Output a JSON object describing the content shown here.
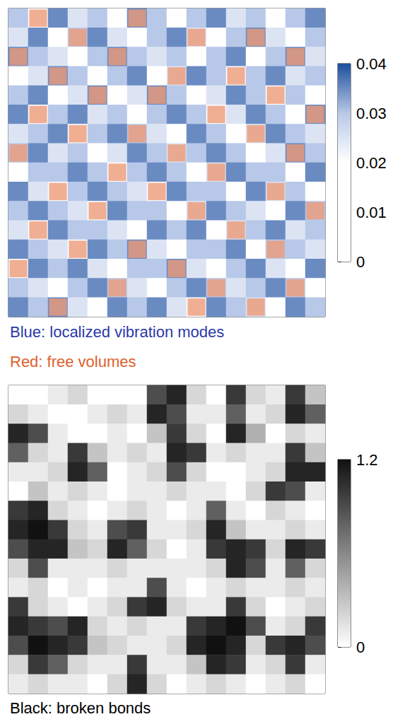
{
  "chart_data": [
    {
      "type": "heatmap",
      "cells": [
        [
          0.03,
          0.02,
          0.035,
          0.025,
          0.03,
          0.02,
          0.035,
          0.03,
          0.02,
          0.03,
          0.035,
          0.025,
          0.03,
          0.02,
          0.03,
          0.035
        ],
        [
          0.025,
          0.035,
          0.02,
          0.03,
          0.035,
          0.025,
          0.02,
          0.03,
          0.035,
          0.025,
          0.02,
          0.03,
          0.035,
          0.025,
          0.02,
          0.03
        ],
        [
          0.035,
          0.03,
          0.025,
          0.02,
          0.03,
          0.035,
          0.03,
          0.025,
          0.03,
          0.02,
          0.03,
          0.035,
          0.02,
          0.03,
          0.035,
          0.025
        ],
        [
          0.02,
          0.025,
          0.035,
          0.03,
          0.02,
          0.03,
          0.035,
          0.02,
          0.025,
          0.035,
          0.03,
          0.02,
          0.03,
          0.035,
          0.025,
          0.03
        ],
        [
          0.03,
          0.035,
          0.02,
          0.025,
          0.035,
          0.02,
          0.025,
          0.035,
          0.03,
          0.02,
          0.025,
          0.035,
          0.03,
          0.02,
          0.03,
          0.02
        ],
        [
          0.035,
          0.02,
          0.03,
          0.035,
          0.025,
          0.03,
          0.02,
          0.03,
          0.035,
          0.03,
          0.02,
          0.025,
          0.035,
          0.03,
          0.02,
          0.035
        ],
        [
          0.025,
          0.03,
          0.035,
          0.02,
          0.03,
          0.035,
          0.03,
          0.025,
          0.02,
          0.035,
          0.03,
          0.02,
          0.025,
          0.035,
          0.03,
          0.025
        ],
        [
          0.03,
          0.035,
          0.025,
          0.03,
          0.02,
          0.025,
          0.035,
          0.03,
          0.025,
          0.03,
          0.035,
          0.03,
          0.02,
          0.025,
          0.035,
          0.03
        ],
        [
          0.02,
          0.03,
          0.03,
          0.035,
          0.03,
          0.02,
          0.03,
          0.035,
          0.03,
          0.02,
          0.025,
          0.035,
          0.03,
          0.03,
          0.02,
          0.035
        ],
        [
          0.035,
          0.025,
          0.02,
          0.03,
          0.035,
          0.03,
          0.025,
          0.02,
          0.035,
          0.03,
          0.03,
          0.02,
          0.035,
          0.025,
          0.03,
          0.02
        ],
        [
          0.03,
          0.035,
          0.03,
          0.025,
          0.02,
          0.035,
          0.03,
          0.03,
          0.02,
          0.025,
          0.035,
          0.03,
          0.025,
          0.02,
          0.035,
          0.03
        ],
        [
          0.025,
          0.02,
          0.035,
          0.03,
          0.03,
          0.025,
          0.02,
          0.035,
          0.03,
          0.035,
          0.02,
          0.025,
          0.03,
          0.035,
          0.025,
          0.03
        ],
        [
          0.035,
          0.03,
          0.025,
          0.02,
          0.035,
          0.03,
          0.035,
          0.025,
          0.02,
          0.03,
          0.03,
          0.035,
          0.02,
          0.03,
          0.03,
          0.025
        ],
        [
          0.02,
          0.035,
          0.03,
          0.035,
          0.025,
          0.02,
          0.03,
          0.03,
          0.035,
          0.025,
          0.02,
          0.03,
          0.035,
          0.025,
          0.02,
          0.035
        ],
        [
          0.03,
          0.025,
          0.02,
          0.03,
          0.035,
          0.03,
          0.025,
          0.02,
          0.03,
          0.035,
          0.03,
          0.025,
          0.03,
          0.035,
          0.03,
          0.02
        ],
        [
          0.035,
          0.03,
          0.035,
          0.025,
          0.02,
          0.035,
          0.03,
          0.035,
          0.025,
          0.02,
          0.035,
          0.03,
          0.025,
          0.02,
          0.035,
          0.03
        ]
      ],
      "overlay": {
        "color": "#ec9a78",
        "cells": [
          [
            1,
            0
          ],
          [
            6,
            0
          ],
          [
            12,
            1
          ],
          [
            3,
            1
          ],
          [
            9,
            1
          ],
          [
            0,
            2
          ],
          [
            5,
            2
          ],
          [
            14,
            2
          ],
          [
            2,
            3
          ],
          [
            8,
            3
          ],
          [
            11,
            3
          ],
          [
            4,
            4
          ],
          [
            13,
            4
          ],
          [
            7,
            4
          ],
          [
            1,
            5
          ],
          [
            10,
            5
          ],
          [
            15,
            5
          ],
          [
            3,
            6
          ],
          [
            6,
            6
          ],
          [
            12,
            6
          ],
          [
            0,
            7
          ],
          [
            8,
            7
          ],
          [
            14,
            7
          ],
          [
            5,
            8
          ],
          [
            10,
            8
          ],
          [
            2,
            9
          ],
          [
            7,
            9
          ],
          [
            13,
            9
          ],
          [
            4,
            10
          ],
          [
            9,
            10
          ],
          [
            15,
            10
          ],
          [
            1,
            11
          ],
          [
            11,
            11
          ],
          [
            6,
            12
          ],
          [
            3,
            12
          ],
          [
            13,
            12
          ],
          [
            0,
            13
          ],
          [
            8,
            13
          ],
          [
            10,
            14
          ],
          [
            5,
            14
          ],
          [
            14,
            14
          ],
          [
            2,
            15
          ],
          [
            9,
            15
          ],
          [
            12,
            15
          ]
        ]
      },
      "colorbar": {
        "range": [
          0,
          0.04
        ],
        "ticks": [
          0,
          0.01,
          0.02,
          0.03,
          0.04
        ],
        "colors": [
          "#ffffff",
          "#ffffff",
          "#ffffff",
          "#b8c8e8",
          "#1d4f9c"
        ]
      },
      "captions": [
        {
          "text": "Blue: localized vibration modes",
          "color": "#2a3aa8"
        },
        {
          "text": "Red: free volumes",
          "color": "#e0602e"
        }
      ]
    },
    {
      "type": "heatmap",
      "cells": [
        [
          0,
          0,
          0.1,
          0.2,
          0,
          0,
          0,
          0.9,
          1.1,
          0.2,
          0,
          1.0,
          0.2,
          0.1,
          1.0,
          0.3
        ],
        [
          0.2,
          0.1,
          0,
          0,
          0.1,
          0.2,
          0.1,
          1.1,
          0.9,
          0.1,
          0.1,
          0.8,
          0.1,
          0.2,
          1.1,
          0.8
        ],
        [
          1.1,
          0.9,
          0.1,
          0,
          0,
          0.1,
          0,
          0.3,
          1.0,
          0.2,
          0,
          1.1,
          0.4,
          0,
          0.2,
          0.1
        ],
        [
          0.8,
          0.2,
          0.1,
          1.0,
          0.3,
          0.1,
          0.2,
          0.1,
          1.1,
          1.0,
          0.1,
          0.2,
          0.1,
          0.1,
          1.0,
          0.3
        ],
        [
          0.1,
          0.1,
          0.2,
          1.1,
          0.8,
          0,
          0.1,
          0.2,
          0.9,
          0.2,
          0,
          0,
          0.1,
          0.2,
          1.1,
          1.1
        ],
        [
          0,
          0.3,
          0.1,
          0.2,
          0.1,
          0,
          0.1,
          0.1,
          0.2,
          0.1,
          0.1,
          0,
          0.2,
          1.0,
          0.9,
          0.1
        ],
        [
          1.0,
          1.1,
          0.2,
          0.1,
          0,
          0.1,
          0.2,
          0.1,
          0,
          0.1,
          0.8,
          0.1,
          0,
          0.2,
          0.1,
          0
        ],
        [
          1.1,
          1.2,
          1.0,
          0.2,
          0.1,
          0.9,
          1.0,
          0.1,
          0.1,
          0.2,
          1.1,
          0.3,
          0.1,
          0.1,
          0.2,
          0.1
        ],
        [
          0.9,
          1.1,
          1.1,
          0.3,
          0.2,
          1.1,
          0.8,
          0.2,
          0,
          0.1,
          1.0,
          1.1,
          1.0,
          0.2,
          1.1,
          1.0
        ],
        [
          0.2,
          0.9,
          0.1,
          0.1,
          0.1,
          0.2,
          0.1,
          0.1,
          0.1,
          0.1,
          0.2,
          1.1,
          0.9,
          0.1,
          0.8,
          0.2
        ],
        [
          0.1,
          0.2,
          0,
          0.1,
          0,
          0.1,
          0.1,
          0.9,
          0.1,
          0,
          0.1,
          0.2,
          0.1,
          0.1,
          0.2,
          0.1
        ],
        [
          1.0,
          0.2,
          0.1,
          0,
          0.1,
          0.2,
          1.0,
          1.1,
          0.2,
          0.1,
          0.1,
          1.0,
          0.2,
          0,
          0.1,
          0.2
        ],
        [
          1.1,
          1.0,
          0.9,
          1.1,
          0.2,
          0.1,
          0.2,
          0.1,
          0.1,
          1.0,
          1.1,
          1.2,
          0.9,
          0.1,
          0.2,
          1.0
        ],
        [
          0.9,
          1.2,
          1.1,
          1.0,
          0.3,
          0.2,
          0.1,
          0.1,
          0.2,
          1.1,
          1.2,
          1.1,
          0.2,
          1.0,
          1.1,
          0.9
        ],
        [
          0.2,
          1.0,
          0.8,
          0.2,
          0.1,
          0.1,
          1.0,
          0.1,
          0.1,
          0.3,
          1.1,
          1.0,
          0.1,
          0.2,
          1.0,
          0.1
        ],
        [
          0.1,
          0.2,
          0.1,
          0.1,
          0,
          0.2,
          1.1,
          0.2,
          0,
          0.1,
          0.2,
          0.1,
          0,
          0.1,
          0.2,
          0
        ]
      ],
      "colorbar": {
        "range": [
          0,
          1.2
        ],
        "ticks": [
          0,
          1.2
        ],
        "colors": [
          "#ffffff",
          "#111111"
        ]
      },
      "captions": [
        {
          "text": "Black: broken bonds",
          "color": "#000000"
        }
      ]
    }
  ]
}
